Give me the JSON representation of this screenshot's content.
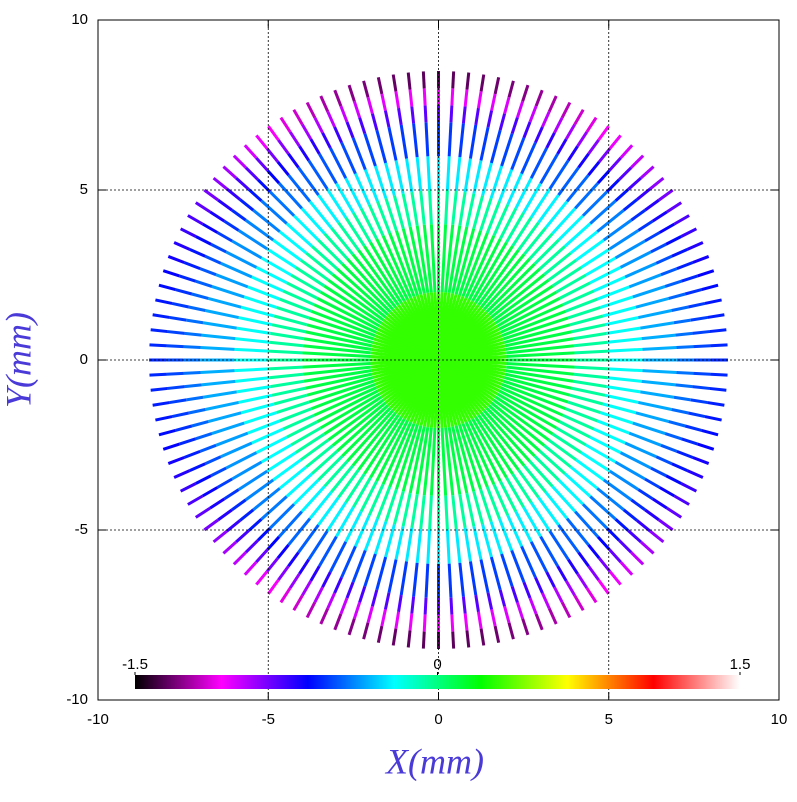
{
  "chart_data": {
    "type": "radial",
    "xlabel": "X(mm)",
    "ylabel": "Y(mm)",
    "xlim": [
      -10,
      10
    ],
    "ylim": [
      -10,
      10
    ],
    "xticks": [
      -10,
      -5,
      0,
      5,
      10
    ],
    "yticks": [
      -10,
      -5,
      0,
      5,
      10
    ],
    "grid": true,
    "angles": [
      0,
      3,
      6,
      9,
      12,
      15,
      18,
      21,
      24,
      27,
      30,
      33,
      36,
      39,
      42,
      45,
      48,
      51,
      54,
      57,
      60,
      63,
      66,
      69,
      72,
      75,
      78,
      81,
      84,
      87,
      90,
      93,
      96,
      99,
      102,
      105,
      108,
      111,
      114,
      117,
      120,
      123,
      126,
      129,
      132,
      135,
      138,
      141,
      144,
      147,
      150,
      153,
      156,
      159,
      162,
      165,
      168,
      171,
      174,
      177,
      180,
      183,
      186,
      189,
      192,
      195,
      198,
      201,
      204,
      207,
      210,
      213,
      216,
      219,
      222,
      225,
      228,
      231,
      234,
      237,
      240,
      243,
      246,
      249,
      252,
      255,
      258,
      261,
      264,
      267,
      270,
      273,
      276,
      279,
      282,
      285,
      288,
      291,
      294,
      297,
      300,
      303,
      306,
      309,
      312,
      315,
      318,
      321,
      324,
      327,
      330,
      333,
      336,
      339,
      342,
      345,
      348,
      351,
      354,
      357
    ],
    "profiles": {
      "r": [
        0,
        2,
        4,
        5,
        6,
        7,
        7.5,
        8,
        8.5
      ],
      "horizontal": [
        0.4,
        0.2,
        0,
        -0.1,
        -0.3,
        -0.4,
        -0.5,
        -0.55,
        -0.6
      ],
      "vertical": [
        0.4,
        0.2,
        0,
        -0.1,
        -0.4,
        -0.7,
        -0.9,
        -1.2,
        -1.5
      ]
    },
    "colorbar": {
      "lim": [
        -1.5,
        1.5
      ],
      "ticks": [
        -1.5,
        0,
        1.5
      ],
      "colors": [
        "#000000",
        "#ff00ff",
        "#0000ff",
        "#00ffff",
        "#00ff00",
        "#ffff00",
        "#ff0000",
        "#ffffff"
      ]
    }
  }
}
